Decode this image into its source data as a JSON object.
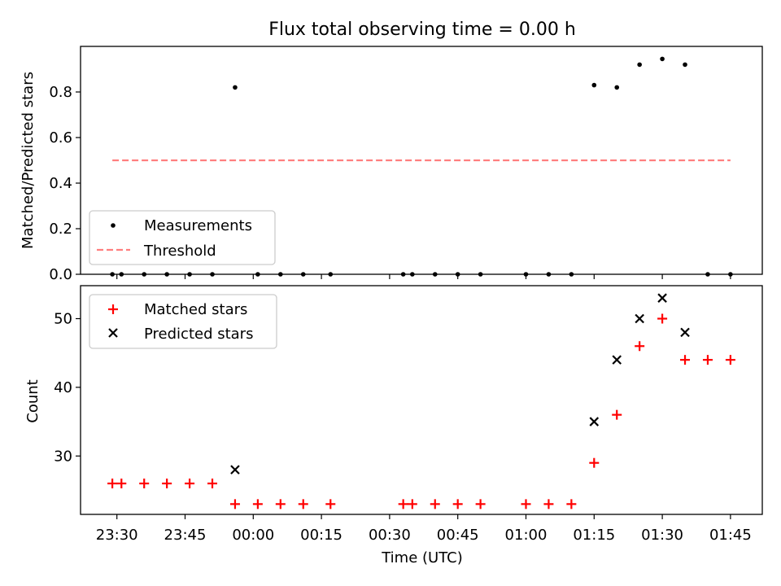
{
  "chart_data": {
    "title": "Flux total observing time = 0.00 h",
    "xlabel": "Time (UTC)",
    "x_time_range": [
      "23:22",
      "01:52"
    ],
    "x_ticks": [
      "23:30",
      "23:45",
      "00:00",
      "00:15",
      "00:30",
      "00:45",
      "01:00",
      "01:15",
      "01:30",
      "01:45"
    ],
    "top": {
      "type": "scatter",
      "ylabel": "Matched/Predicted stars",
      "ylim": [
        0,
        1.0
      ],
      "yticks": [
        "0.0",
        "0.2",
        "0.4",
        "0.6",
        "0.8"
      ],
      "legend_position": "lower-left",
      "series": [
        {
          "name": "Measurements",
          "color": "#000000",
          "marker": "dot",
          "x": [
            "23:29",
            "23:31",
            "23:36",
            "23:41",
            "23:46",
            "23:51",
            "23:56",
            "00:01",
            "00:06",
            "00:11",
            "00:17",
            "00:33",
            "00:35",
            "00:40",
            "00:45",
            "00:50",
            "01:00",
            "01:05",
            "01:10",
            "01:15",
            "01:20",
            "01:25",
            "01:30",
            "01:35",
            "01:40",
            "01:45"
          ],
          "y": [
            0,
            0,
            0,
            0,
            0,
            0,
            0.82,
            0,
            0,
            0,
            0,
            0,
            0,
            0,
            0,
            0,
            0,
            0,
            0,
            0.83,
            0.82,
            0.92,
            0.945,
            0.92,
            0,
            0
          ]
        },
        {
          "name": "Threshold",
          "color": "#ff7f7f",
          "style": "dashed",
          "x": [
            "23:29",
            "01:45"
          ],
          "y": [
            0.5,
            0.5
          ]
        }
      ]
    },
    "bottom": {
      "type": "scatter",
      "ylabel": "Count",
      "ylim": [
        21.5,
        54.8
      ],
      "yticks": [
        "30",
        "40",
        "50"
      ],
      "legend_position": "upper-left",
      "series": [
        {
          "name": "Matched stars",
          "color": "#ff0000",
          "marker": "plus",
          "x": [
            "23:29",
            "23:31",
            "23:36",
            "23:41",
            "23:46",
            "23:51",
            "23:56",
            "00:01",
            "00:06",
            "00:11",
            "00:17",
            "00:33",
            "00:35",
            "00:40",
            "00:45",
            "00:50",
            "01:00",
            "01:05",
            "01:10",
            "01:15",
            "01:20",
            "01:25",
            "01:30",
            "01:35",
            "01:40",
            "01:45"
          ],
          "y": [
            26,
            26,
            26,
            26,
            26,
            26,
            23,
            23,
            23,
            23,
            23,
            23,
            23,
            23,
            23,
            23,
            23,
            23,
            23,
            29,
            36,
            46,
            50,
            44,
            44,
            44
          ]
        },
        {
          "name": "Predicted stars",
          "color": "#000000",
          "marker": "x",
          "x": [
            "23:56",
            "01:15",
            "01:20",
            "01:25",
            "01:30",
            "01:35"
          ],
          "y": [
            28,
            35,
            44,
            50,
            53,
            48
          ]
        }
      ]
    }
  }
}
